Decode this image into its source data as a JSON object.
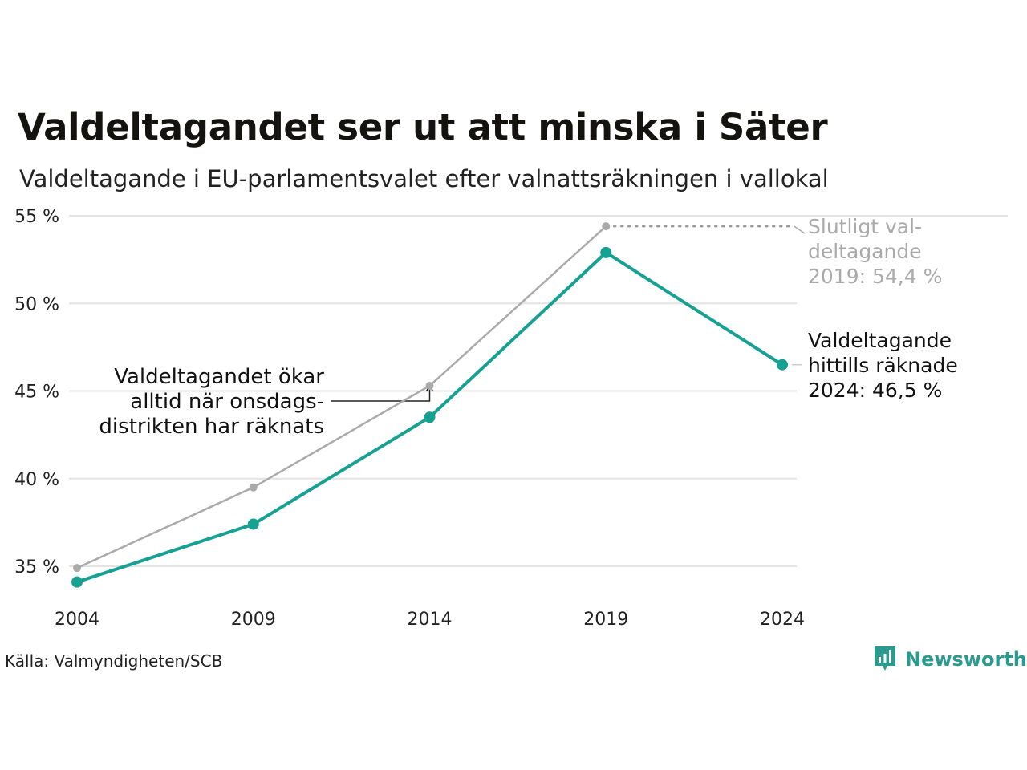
{
  "header": {
    "title": "Valdeltagandet ser ut att minska i Säter",
    "subtitle": "Valdeltagande i EU-parlamentsvalet efter valnattsräkningen i vallokal"
  },
  "chart_data": {
    "type": "line",
    "x": [
      2004,
      2009,
      2014,
      2019,
      2024
    ],
    "x_tick_labels": [
      "2004",
      "2009",
      "2014",
      "2019",
      "2024"
    ],
    "y_ticks": [
      35,
      40,
      45,
      50,
      55
    ],
    "y_tick_labels": [
      "35 %",
      "40 %",
      "45 %",
      "50 %",
      "55 %"
    ],
    "ylim": [
      33,
      55
    ],
    "grid": true,
    "series": [
      {
        "key": "final",
        "color": "#aaaaaa",
        "values": [
          34.9,
          39.5,
          45.3,
          54.4,
          null
        ]
      },
      {
        "key": "counted",
        "color": "#16a193",
        "values": [
          34.1,
          37.4,
          43.5,
          52.9,
          46.5
        ]
      }
    ],
    "annotations": {
      "final_2019": [
        "Slutligt val-",
        "deltagande",
        "2019: 54,4 %"
      ],
      "counted_2024": [
        "Valdeltagande",
        "hittills räknade",
        "2024: 46,5 %"
      ],
      "wednesday": [
        "Valdeltagandet ökar",
        "alltid när onsdags-",
        "distrikten har räknats"
      ]
    }
  },
  "footer": {
    "source": "Källa: Valmyndigheten/SCB",
    "brand": "Newsworthy",
    "brand_icon": "newsworthy-logo-icon",
    "brand_color": "#2a9b8e"
  }
}
